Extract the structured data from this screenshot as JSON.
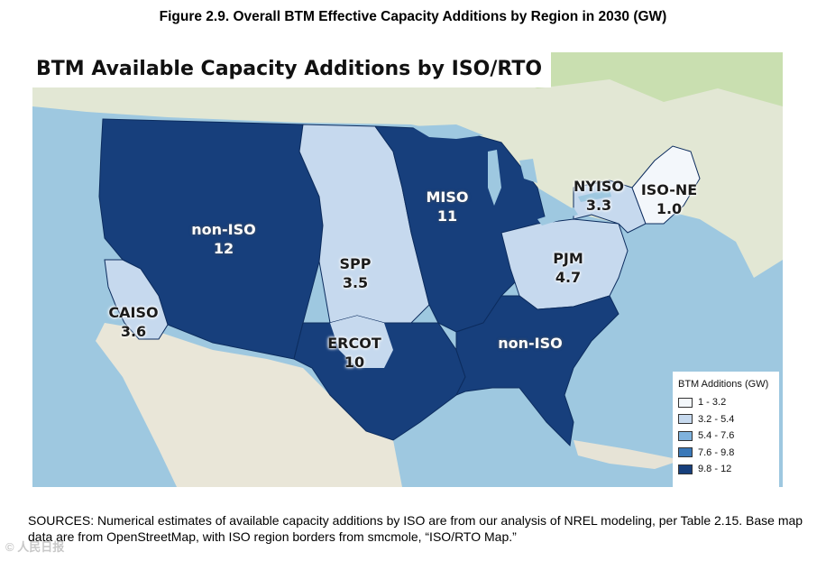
{
  "figure_title": "Figure 2.9. Overall BTM Effective Capacity Additions by Region in 2030 (GW)",
  "map": {
    "title": "BTM Available Capacity Additions by ISO/RTO",
    "regions": [
      {
        "name": "non-ISO",
        "value": "12",
        "bin": 5
      },
      {
        "name": "CAISO",
        "value": "3.6",
        "bin": 2
      },
      {
        "name": "SPP",
        "value": "3.5",
        "bin": 2
      },
      {
        "name": "MISO",
        "value": "11",
        "bin": 5
      },
      {
        "name": "ERCOT",
        "value": "10",
        "bin": 5
      },
      {
        "name": "NYISO",
        "value": "3.3",
        "bin": 2
      },
      {
        "name": "ISO-NE",
        "value": "1.0",
        "bin": 1
      },
      {
        "name": "PJM",
        "value": "4.7",
        "bin": 2
      },
      {
        "name": "non-ISO",
        "value": "",
        "bin": 5
      }
    ]
  },
  "legend": {
    "title": "BTM Additions (GW)",
    "items": [
      {
        "label": "1 - 3.2",
        "color": "#f3f7fb"
      },
      {
        "label": "3.2 - 5.4",
        "color": "#c6d9ee"
      },
      {
        "label": "5.4 - 7.6",
        "color": "#7fb2dd"
      },
      {
        "label": "7.6 - 9.8",
        "color": "#3a78b8"
      },
      {
        "label": "9.8 - 12",
        "color": "#173f7c"
      }
    ]
  },
  "sources": "SOURCES: Numerical estimates of available capacity additions by ISO are from our analysis of NREL modeling, per Table 2.15. Base map data are from OpenStreetMap, with ISO region borders from smcmole, “ISO/RTO Map.”",
  "watermark": "© 人民日报"
}
